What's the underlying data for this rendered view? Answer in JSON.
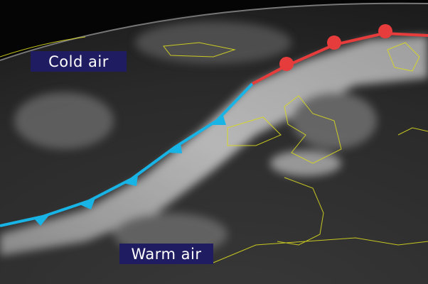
{
  "labels": {
    "cold": "Cold air",
    "warm": "Warm air"
  },
  "colors": {
    "cold_front": "#19b4e6",
    "warm_front": "#e63c3c",
    "label_bg": "#201c62",
    "coastline": "#d8d820"
  },
  "fronts": [
    "cold-front",
    "warm-front"
  ]
}
